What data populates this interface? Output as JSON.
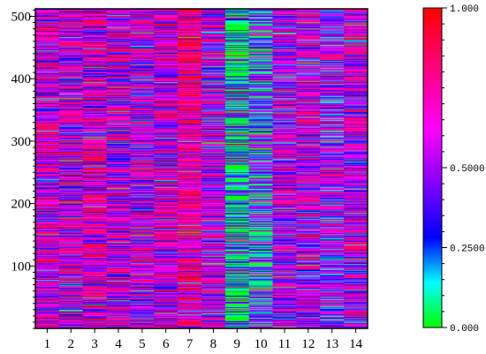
{
  "chart_data": {
    "type": "heatmap",
    "title": "",
    "xlabel": "",
    "ylabel": "",
    "x_categories": [
      1,
      2,
      3,
      4,
      5,
      6,
      7,
      8,
      9,
      10,
      11,
      12,
      13,
      14
    ],
    "xlim": [
      0.5,
      14.5
    ],
    "ylim": [
      0,
      512
    ],
    "y_ticks": [
      100,
      200,
      300,
      400,
      500
    ],
    "rows": 512,
    "column_mean_value": [
      0.62,
      0.6,
      0.64,
      0.61,
      0.58,
      0.62,
      0.78,
      0.56,
      0.1,
      0.3,
      0.55,
      0.55,
      0.5,
      0.58
    ],
    "colorbar": {
      "range": [
        0.0,
        1.0
      ],
      "tick_labels": [
        {
          "value": 1.0,
          "label": "1.000"
        },
        {
          "value": 0.5,
          "label": "0.5000"
        },
        {
          "value": 0.25,
          "label": "0.2500"
        },
        {
          "value": 0.0,
          "label": "0.000"
        }
      ],
      "colormap": [
        {
          "value": 0.0,
          "color": "#00ff00"
        },
        {
          "value": 0.14,
          "color": "#00ffff"
        },
        {
          "value": 0.28,
          "color": "#0000ff"
        },
        {
          "value": 0.46,
          "color": "#8a00ff"
        },
        {
          "value": 0.62,
          "color": "#ff00ff"
        },
        {
          "value": 1.0,
          "color": "#ff0000"
        }
      ]
    },
    "legend_placement": "right",
    "grid": false
  }
}
